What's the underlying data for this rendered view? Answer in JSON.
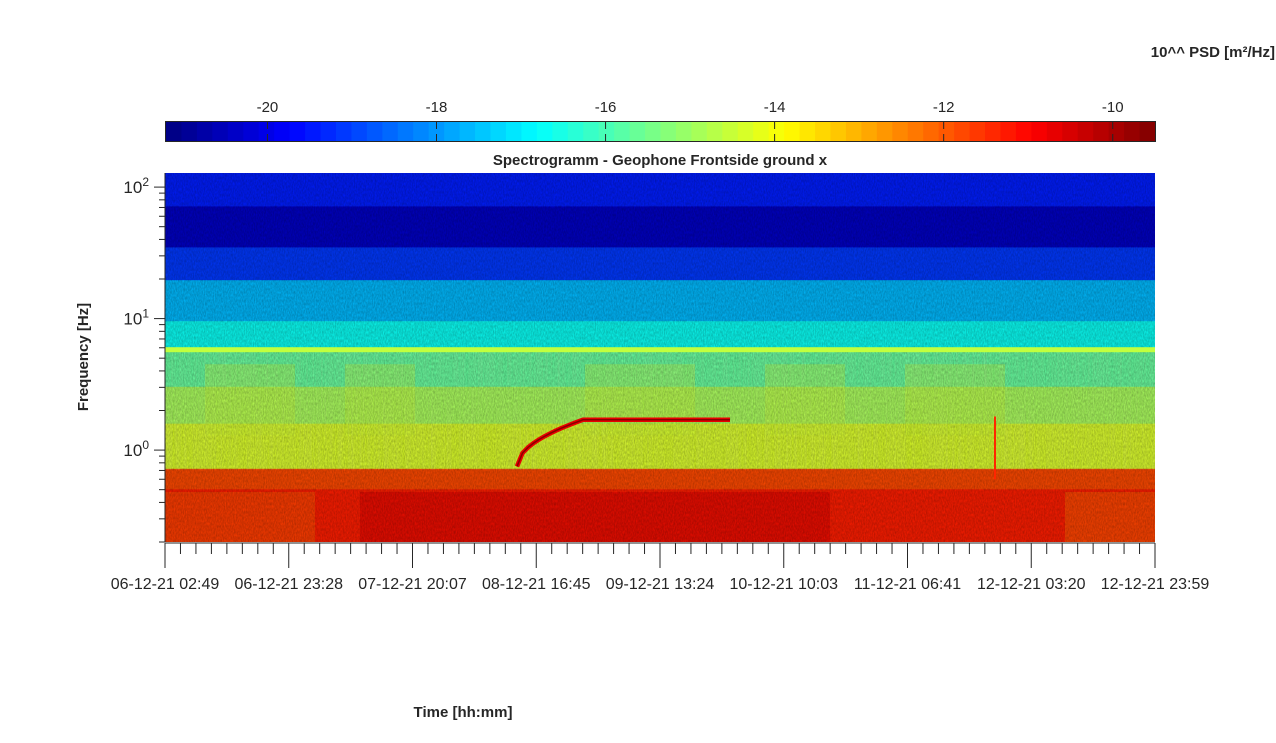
{
  "chart_data": {
    "type": "heatmap",
    "title": "Spectrogramm - Geophone Frontside ground x",
    "xlabel": "Time [hh:mm]",
    "ylabel": "Frequency [Hz]",
    "colorbar": {
      "label": "10^^ PSD [m²/Hz]",
      "range": [
        -21.2,
        -9.5
      ],
      "ticks": [
        -20,
        -18,
        -16,
        -14,
        -12,
        -10
      ],
      "tick_labels": [
        "-20",
        "-18",
        "-16",
        "-14",
        "-12",
        "-10"
      ],
      "colormap": "jet"
    },
    "y_scale": "log",
    "ylim": [
      0.2,
      128
    ],
    "y_ticks": [
      {
        "mantissa": "10",
        "exponent": "0",
        "value": 1
      },
      {
        "mantissa": "10",
        "exponent": "1",
        "value": 10
      },
      {
        "mantissa": "10",
        "exponent": "2",
        "value": 100
      }
    ],
    "x_range": [
      "06-12-21 02:49",
      "12-12-21 23:59"
    ],
    "x_tick_labels": [
      "06-12-21  02:49",
      "06-12-21  23:28",
      "07-12-21  20:07",
      "08-12-21  16:45",
      "09-12-21  13:24",
      "10-12-21  10:03",
      "11-12-21  06:41",
      "12-12-21  03:20",
      "12-12-21  23:59"
    ],
    "features": [
      {
        "name": "persistent line",
        "frequency_hz": 5.8
      },
      {
        "name": "chirp",
        "start_frequency_hz": 0.75,
        "end_frequency_hz": 1.7,
        "start": "08-12-21 12:00",
        "end": "10-12-21 00:00"
      },
      {
        "name": "transient",
        "time": "11-12-21 16:00",
        "frequency_range_hz": [
          0.6,
          1.8
        ]
      }
    ]
  }
}
